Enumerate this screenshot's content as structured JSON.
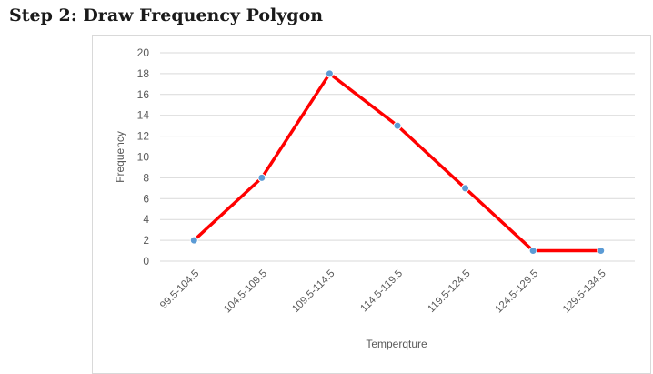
{
  "heading": "Step 2: Draw Frequency Polygon",
  "chart_data": {
    "type": "line",
    "title": "",
    "xlabel": "Temperqture",
    "ylabel": "Frequency",
    "categories": [
      "99.5-104.5",
      "104.5-109.5",
      "109.5-114.5",
      "114.5-119.5",
      "119.5-124.5",
      "124.5-129.5",
      "129.5-134.5"
    ],
    "series": [
      {
        "values": [
          2,
          8,
          18,
          13,
          7,
          1,
          1
        ],
        "color": "#ff0000",
        "marker_color": "#5b9bd5"
      }
    ],
    "ylim": [
      0,
      20
    ],
    "yticks": [
      0,
      2,
      4,
      6,
      8,
      10,
      12,
      14,
      16,
      18,
      20
    ],
    "grid": true,
    "grid_color": "#d9d9d9",
    "legend": "none"
  }
}
